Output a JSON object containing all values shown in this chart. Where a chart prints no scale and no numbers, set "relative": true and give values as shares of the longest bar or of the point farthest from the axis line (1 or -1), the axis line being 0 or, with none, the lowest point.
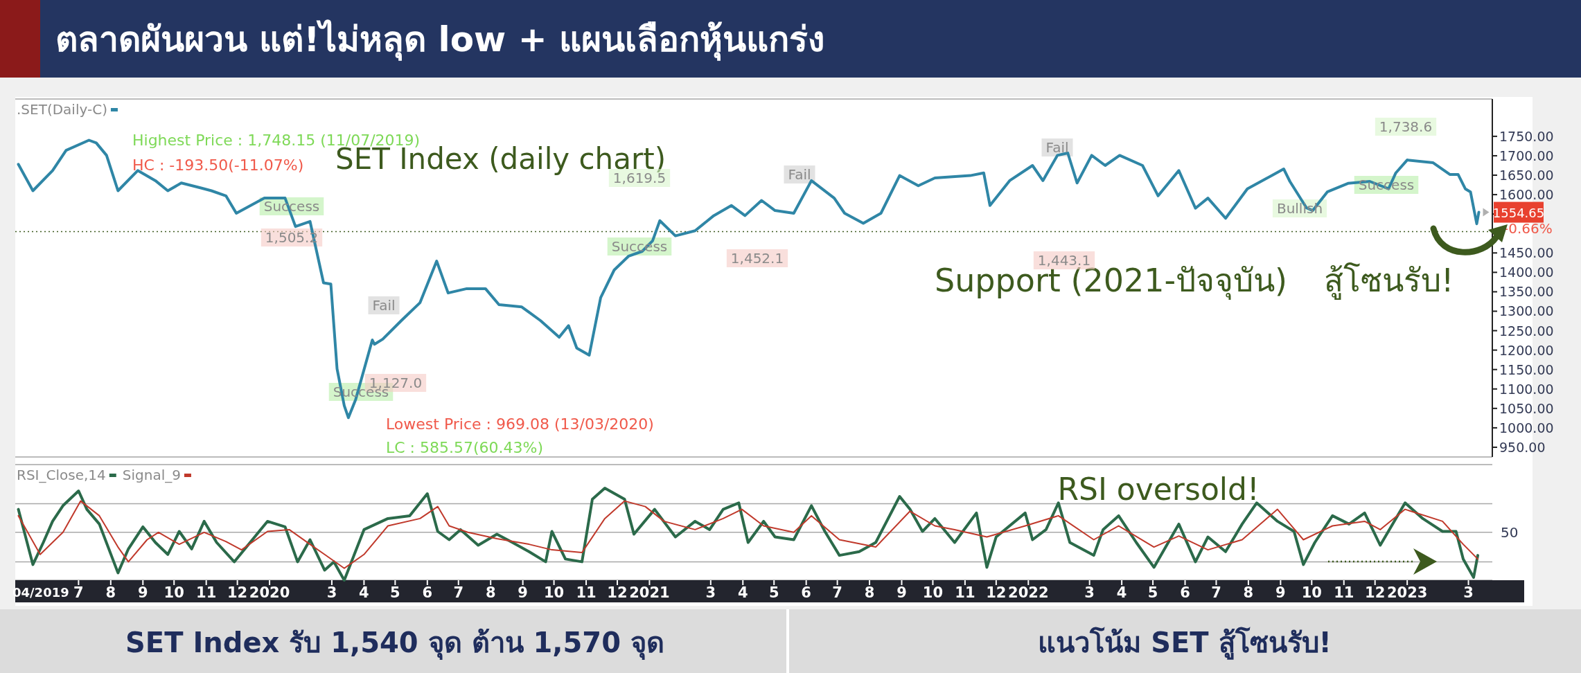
{
  "chart_data": [
    {
      "type": "line",
      "title": "ตลาดผันผวน แต่!ไม่หลุด low + แผนเลือกหุ้นแกร่ง",
      "xlim": [
        "2019-05-01",
        "2023-03-24"
      ],
      "ylim": [
        925,
        1846
      ],
      "yticks": [
        {
          "value": 950,
          "label": "950.00"
        },
        {
          "value": 1000,
          "label": "1000.00"
        },
        {
          "value": 1050,
          "label": "1050.00"
        },
        {
          "value": 1100,
          "label": "1100.00"
        },
        {
          "value": 1150,
          "label": "1150.00"
        },
        {
          "value": 1200,
          "label": "1200.00"
        },
        {
          "value": 1250,
          "label": "1250.00"
        },
        {
          "value": 1300,
          "label": "1300.00"
        },
        {
          "value": 1350,
          "label": "1350.00"
        },
        {
          "value": 1400,
          "label": "1400.00"
        },
        {
          "value": 1450,
          "label": "1450.00"
        },
        {
          "value": 1500,
          "label": null
        },
        {
          "value": 1550,
          "label": null
        },
        {
          "value": 1600,
          "label": "1600.00"
        },
        {
          "value": 1650,
          "label": "1650.00"
        },
        {
          "value": 1700,
          "label": "1700.00"
        },
        {
          "value": 1750,
          "label": "1750.00"
        }
      ],
      "tick_labels": "y",
      "legend": "top left",
      "series": [
        {
          "name": ".SET(Daily-C)",
          "color": "#2f86a6",
          "x": [
            "2019-05-04",
            "2019-05-18",
            "2019-06-06",
            "2019-06-19",
            "2019-07-11",
            "2019-07-18",
            "2019-07-28",
            "2019-08-08",
            "2019-08-27",
            "2019-09-13",
            "2019-09-25",
            "2019-10-08",
            "2019-10-27",
            "2019-11-06",
            "2019-11-20",
            "2019-11-30",
            "2019-12-27",
            "2020-01-16",
            "2020-01-26",
            "2020-02-09",
            "2020-02-22",
            "2020-02-29",
            "2020-03-06",
            "2020-03-13",
            "2020-03-17",
            "2020-03-24",
            "2020-04-09",
            "2020-04-11",
            "2020-04-19",
            "2020-05-07",
            "2020-05-25",
            "2020-06-10",
            "2020-06-21",
            "2020-07-09",
            "2020-07-27",
            "2020-08-09",
            "2020-08-31",
            "2020-09-18",
            "2020-10-06",
            "2020-10-15",
            "2020-10-23",
            "2020-11-04",
            "2020-11-15",
            "2020-11-28",
            "2020-12-12",
            "2020-12-25",
            "2021-01-04",
            "2021-01-11",
            "2021-01-26",
            "2021-02-14",
            "2021-03-04",
            "2021-03-21",
            "2021-04-03",
            "2021-04-19",
            "2021-05-02",
            "2021-05-20",
            "2021-06-06",
            "2021-06-28",
            "2021-07-08",
            "2021-07-26",
            "2021-08-12",
            "2021-08-30",
            "2021-09-17",
            "2021-10-03",
            "2021-11-06",
            "2021-11-19",
            "2021-11-25",
            "2021-12-14",
            "2022-01-05",
            "2022-01-15",
            "2022-01-29",
            "2022-02-08",
            "2022-02-17",
            "2022-03-03",
            "2022-03-16",
            "2022-03-30",
            "2022-04-21",
            "2022-05-06",
            "2022-05-26",
            "2022-06-11",
            "2022-06-23",
            "2022-07-10",
            "2022-07-31",
            "2022-08-18",
            "2022-09-04",
            "2022-09-10",
            "2022-09-26",
            "2022-10-02",
            "2022-10-16",
            "2022-11-05",
            "2022-11-26",
            "2022-12-14",
            "2022-12-21",
            "2023-01-01",
            "2023-01-26",
            "2023-02-11",
            "2023-02-19",
            "2023-02-26",
            "2023-03-03",
            "2023-03-09",
            "2023-03-11"
          ],
          "values": [
            1678,
            1610,
            1662,
            1714,
            1740,
            1733,
            1701,
            1610,
            1662,
            1636,
            1610,
            1630,
            1617,
            1610,
            1597,
            1552,
            1591,
            1591,
            1518,
            1531,
            1373,
            1370,
            1152,
            1057,
            1026,
            1073,
            1226,
            1215,
            1228,
            1276,
            1322,
            1429,
            1347,
            1358,
            1358,
            1317,
            1311,
            1276,
            1233,
            1263,
            1205,
            1187,
            1335,
            1406,
            1442,
            1454,
            1481,
            1533,
            1494,
            1507,
            1546,
            1572,
            1546,
            1585,
            1559,
            1552,
            1636,
            1591,
            1552,
            1526,
            1552,
            1649,
            1623,
            1643,
            1649,
            1656,
            1572,
            1636,
            1675,
            1636,
            1701,
            1707,
            1630,
            1701,
            1675,
            1701,
            1675,
            1597,
            1662,
            1565,
            1591,
            1539,
            1615,
            1641,
            1666,
            1634,
            1566,
            1559,
            1607,
            1629,
            1634,
            1615,
            1656,
            1689,
            1682,
            1652,
            1652,
            1615,
            1607,
            1525,
            1554.65
          ]
        }
      ],
      "ref_lines": [
        {
          "axis": "y",
          "value": 1505,
          "color": "#3d5a1e",
          "line_style": "dotted"
        }
      ],
      "annotations": [
        "SET Index (daily chart)",
        "Highest Price : 1,748.15 (11/07/2019)",
        "HC : -193.50(-11.07%)",
        "Lowest Price : 969.08 (13/03/2020)",
        "LC : 585.57(60.43%)",
        "Support (2021-ปัจจุบัน)",
        "สู้โซนรับ!",
        "-0.66%",
        {
          "text": "1554.65",
          "x": "2023-03-11",
          "y": 1554.65
        },
        "Success",
        "1,505.2",
        "Success",
        "Fail",
        "1,127.0",
        "1,619.5",
        "Success",
        "1,452.1",
        "Fail",
        "Fail",
        "1,443.1",
        "Bullish",
        "Success",
        "1,738.6"
      ]
    },
    {
      "type": "line",
      "relative": true,
      "xlim": [
        "2019-05-01",
        "2023-03-24"
      ],
      "legend": "top left",
      "xticks": [
        {
          "value": "2019-07-01",
          "label": "7"
        },
        {
          "value": "2019-08-01",
          "label": "8"
        },
        {
          "value": "2019-09-01",
          "label": "9"
        },
        {
          "value": "2019-10-01",
          "label": "10"
        },
        {
          "value": "2019-11-01",
          "label": "11"
        },
        {
          "value": "2019-12-01",
          "label": "12"
        },
        {
          "value": "2020-01-01",
          "label": "2020"
        },
        {
          "value": "2020-03-01",
          "label": "3"
        },
        {
          "value": "2020-04-01",
          "label": "4"
        },
        {
          "value": "2020-05-01",
          "label": "5"
        },
        {
          "value": "2020-06-01",
          "label": "6"
        },
        {
          "value": "2020-07-01",
          "label": "7"
        },
        {
          "value": "2020-08-01",
          "label": "8"
        },
        {
          "value": "2020-09-01",
          "label": "9"
        },
        {
          "value": "2020-10-01",
          "label": "10"
        },
        {
          "value": "2020-11-01",
          "label": "11"
        },
        {
          "value": "2020-12-01",
          "label": "12"
        },
        {
          "value": "2021-01-01",
          "label": "2021"
        },
        {
          "value": "2021-03-01",
          "label": "3"
        },
        {
          "value": "2021-04-01",
          "label": "4"
        },
        {
          "value": "2021-05-01",
          "label": "5"
        },
        {
          "value": "2021-06-01",
          "label": "6"
        },
        {
          "value": "2021-07-01",
          "label": "7"
        },
        {
          "value": "2021-08-01",
          "label": "8"
        },
        {
          "value": "2021-09-01",
          "label": "9"
        },
        {
          "value": "2021-10-01",
          "label": "10"
        },
        {
          "value": "2021-11-01",
          "label": "11"
        },
        {
          "value": "2021-12-01",
          "label": "12"
        },
        {
          "value": "2022-01-01",
          "label": "2022"
        },
        {
          "value": "2022-03-01",
          "label": "3"
        },
        {
          "value": "2022-04-01",
          "label": "4"
        },
        {
          "value": "2022-05-01",
          "label": "5"
        },
        {
          "value": "2022-06-01",
          "label": "6"
        },
        {
          "value": "2022-07-01",
          "label": "7"
        },
        {
          "value": "2022-08-01",
          "label": "8"
        },
        {
          "value": "2022-09-01",
          "label": "9"
        },
        {
          "value": "2022-10-01",
          "label": "10"
        },
        {
          "value": "2022-11-01",
          "label": "11"
        },
        {
          "value": "2022-12-01",
          "label": "12"
        },
        {
          "value": "2023-01-01",
          "label": "2023"
        },
        {
          "value": "2023-03-01",
          "label": "3"
        }
      ],
      "series": [
        {
          "name": "RSI_Close,14",
          "color": "#2b6a4a",
          "x": [
            "2019-05-04",
            "2019-05-18",
            "2019-05-28",
            "2019-06-06",
            "2019-06-16",
            "2019-07-01",
            "2019-07-09",
            "2019-07-21",
            "2019-08-08",
            "2019-08-18",
            "2019-09-01",
            "2019-09-13",
            "2019-09-25",
            "2019-10-06",
            "2019-10-18",
            "2019-10-30",
            "2019-11-11",
            "2019-11-28",
            "2019-12-30",
            "2020-01-16",
            "2020-01-28",
            "2020-02-09",
            "2020-02-23",
            "2020-03-03",
            "2020-03-13",
            "2020-04-01",
            "2020-04-24",
            "2020-05-15",
            "2020-06-01",
            "2020-06-11",
            "2020-06-22",
            "2020-07-03",
            "2020-07-20",
            "2020-08-07",
            "2020-08-22",
            "2020-09-07",
            "2020-09-23",
            "2020-09-29",
            "2020-10-12",
            "2020-10-28",
            "2020-11-07",
            "2020-11-19",
            "2020-12-08",
            "2020-12-17",
            "2021-01-06",
            "2021-01-26",
            "2021-02-14",
            "2021-02-28",
            "2021-03-13",
            "2021-03-28",
            "2021-04-06",
            "2021-04-21",
            "2021-05-02",
            "2021-05-20",
            "2021-06-06",
            "2021-06-19",
            "2021-07-03",
            "2021-07-22",
            "2021-08-07",
            "2021-08-30",
            "2021-09-09",
            "2021-09-21",
            "2021-10-03",
            "2021-10-22",
            "2021-11-12",
            "2021-11-22",
            "2021-12-01",
            "2021-12-29",
            "2022-01-05",
            "2022-01-18",
            "2022-01-30",
            "2022-02-10",
            "2022-03-05",
            "2022-03-14",
            "2022-03-29",
            "2022-04-15",
            "2022-05-02",
            "2022-05-26",
            "2022-06-11",
            "2022-06-23",
            "2022-07-10",
            "2022-07-26",
            "2022-08-09",
            "2022-08-29",
            "2022-09-14",
            "2022-09-23",
            "2022-10-04",
            "2022-10-21",
            "2022-11-06",
            "2022-11-21",
            "2022-12-06",
            "2022-12-30",
            "2023-01-16",
            "2023-02-04",
            "2023-02-17",
            "2023-02-24",
            "2023-03-06",
            "2023-03-10"
          ],
          "values": [
            0.77,
            0.17,
            0.41,
            0.64,
            0.81,
            0.97,
            0.77,
            0.61,
            0.08,
            0.34,
            0.58,
            0.41,
            0.28,
            0.53,
            0.34,
            0.64,
            0.41,
            0.2,
            0.64,
            0.58,
            0.2,
            0.44,
            0.11,
            0.2,
            0,
            0.55,
            0.67,
            0.7,
            0.94,
            0.53,
            0.44,
            0.55,
            0.38,
            0.5,
            0.41,
            0.31,
            0.2,
            0.53,
            0.23,
            0.2,
            0.88,
            1,
            0.88,
            0.5,
            0.77,
            0.47,
            0.64,
            0.55,
            0.77,
            0.84,
            0.41,
            0.64,
            0.47,
            0.44,
            0.81,
            0.53,
            0.27,
            0.31,
            0.41,
            0.91,
            0.77,
            0.53,
            0.67,
            0.41,
            0.73,
            0.14,
            0.47,
            0.73,
            0.44,
            0.55,
            0.84,
            0.41,
            0.27,
            0.55,
            0.7,
            0.41,
            0.14,
            0.61,
            0.2,
            0.47,
            0.31,
            0.61,
            0.84,
            0.64,
            0.53,
            0.17,
            0.41,
            0.7,
            0.61,
            0.73,
            0.38,
            0.84,
            0.67,
            0.53,
            0.53,
            0.23,
            0.03,
            0.27
          ]
        },
        {
          "name": "Signal_9",
          "color": "#c0392b",
          "x": [
            "2019-05-04",
            "2019-05-25",
            "2019-06-16",
            "2019-07-03",
            "2019-07-21",
            "2019-08-08",
            "2019-08-18",
            "2019-09-05",
            "2019-09-16",
            "2019-10-06",
            "2019-10-30",
            "2019-11-20",
            "2019-12-05",
            "2019-12-30",
            "2020-01-20",
            "2020-02-09",
            "2020-02-23",
            "2020-03-13",
            "2020-04-01",
            "2020-04-24",
            "2020-05-25",
            "2020-06-11",
            "2020-06-22",
            "2020-07-10",
            "2020-08-07",
            "2020-09-07",
            "2020-09-29",
            "2020-10-28",
            "2020-11-19",
            "2020-12-08",
            "2020-12-28",
            "2021-01-15",
            "2021-02-14",
            "2021-03-13",
            "2021-03-31",
            "2021-04-21",
            "2021-05-20",
            "2021-06-06",
            "2021-07-03",
            "2021-08-07",
            "2021-09-09",
            "2021-10-03",
            "2021-10-22",
            "2021-11-22",
            "2021-12-29",
            "2022-01-30",
            "2022-03-05",
            "2022-03-29",
            "2022-05-02",
            "2022-05-26",
            "2022-06-23",
            "2022-07-26",
            "2022-08-29",
            "2022-09-23",
            "2022-10-21",
            "2022-11-21",
            "2022-12-06",
            "2022-12-30",
            "2023-02-04",
            "2023-02-24",
            "2023-03-10"
          ],
          "values": [
            0.7,
            0.28,
            0.52,
            0.86,
            0.7,
            0.36,
            0.2,
            0.44,
            0.52,
            0.39,
            0.52,
            0.42,
            0.33,
            0.53,
            0.55,
            0.39,
            0.28,
            0.13,
            0.28,
            0.59,
            0.67,
            0.8,
            0.59,
            0.52,
            0.45,
            0.39,
            0.33,
            0.3,
            0.67,
            0.86,
            0.8,
            0.64,
            0.55,
            0.67,
            0.77,
            0.59,
            0.52,
            0.7,
            0.44,
            0.36,
            0.75,
            0.59,
            0.55,
            0.47,
            0.59,
            0.7,
            0.44,
            0.59,
            0.36,
            0.48,
            0.33,
            0.44,
            0.77,
            0.44,
            0.59,
            0.64,
            0.55,
            0.77,
            0.64,
            0.39,
            0.23
          ]
        }
      ],
      "ref_lines": [
        {
          "axis": "y",
          "value": 0.2,
          "color": "#a8a8a8"
        },
        {
          "axis": "y",
          "value": 0.52,
          "color": "#a8a8a8"
        },
        {
          "axis": "y",
          "value": 0.83,
          "color": "#a8a8a8"
        }
      ],
      "annotations": [
        "RSI oversold!",
        "SET Index รับ 1,540 จุด ต้าน 1,570  จุด",
        "แนวโน้ม SET สู้โซนรับ!",
        "04/2019",
        "50"
      ]
    }
  ]
}
